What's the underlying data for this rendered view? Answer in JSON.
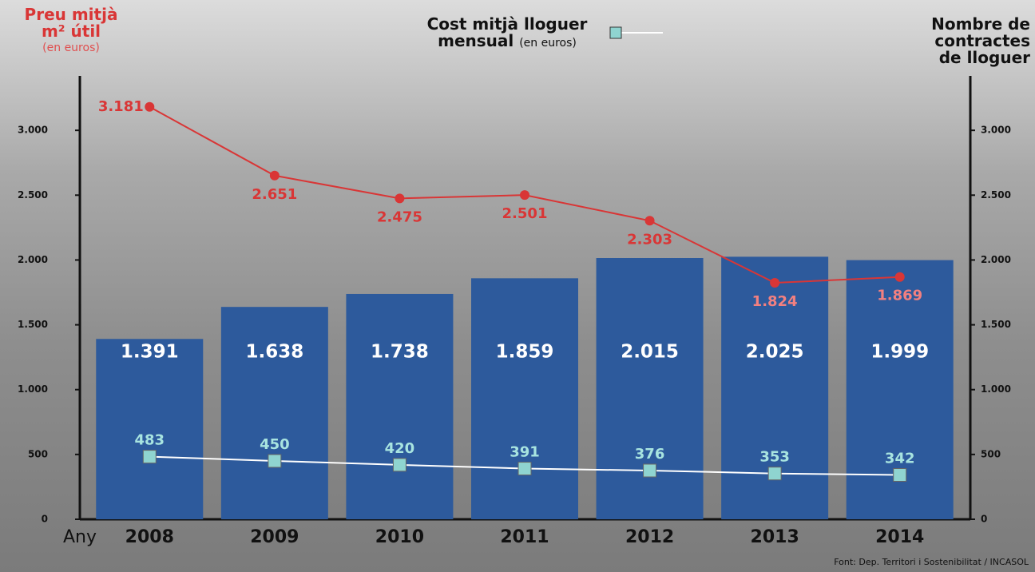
{
  "chart_data": {
    "type": "bar",
    "categories": [
      "2008",
      "2009",
      "2010",
      "2011",
      "2012",
      "2013",
      "2014"
    ],
    "xlabel": "Any",
    "series": [
      {
        "name": "Nombre de contractes de lloguer",
        "type": "bar",
        "axis": "y2",
        "color": "#2d5a9c",
        "values": [
          1391,
          1638,
          1738,
          1859,
          2015,
          2025,
          1999
        ],
        "value_labels": [
          "1.391",
          "1.638",
          "1.738",
          "1.859",
          "2.015",
          "2.025",
          "1.999"
        ]
      },
      {
        "name": "Preu mitjà m² útil",
        "unit": "(en euros)",
        "type": "line",
        "color": "#d93636",
        "values": [
          3181,
          2651,
          2475,
          2501,
          2303,
          1824,
          1869
        ],
        "value_labels": [
          "3.181",
          "2.651",
          "2.475",
          "2.501",
          "2.303",
          "1.824",
          "1.869"
        ]
      },
      {
        "name": "Cost mitjà lloguer mensual",
        "unit": "(en euros)",
        "type": "line",
        "color": "#8fd4d0",
        "values": [
          483,
          450,
          420,
          391,
          376,
          353,
          342
        ]
      }
    ],
    "ylim": [
      0,
      3420
    ],
    "yticks": [
      0,
      500,
      {
        "value": 1000,
        "label": "1.000"
      },
      {
        "value": 1500,
        "label": "1.500"
      },
      {
        "value": 2000,
        "label": "2.000"
      },
      {
        "value": 2500,
        "label": "2.500"
      },
      {
        "value": 3000,
        "label": "3.000"
      }
    ],
    "y2lim": [
      0,
      3420
    ],
    "y2ticks": [
      0,
      500,
      {
        "value": 1000,
        "label": "1.000"
      },
      {
        "value": 1500,
        "label": "1.500"
      },
      {
        "value": 2000,
        "label": "2.000"
      },
      {
        "value": 2500,
        "label": "2.500"
      },
      {
        "value": 3000,
        "label": "3.000"
      }
    ],
    "source": "Font: Dep. Territori i Sostenibilitat / INCASOL"
  }
}
